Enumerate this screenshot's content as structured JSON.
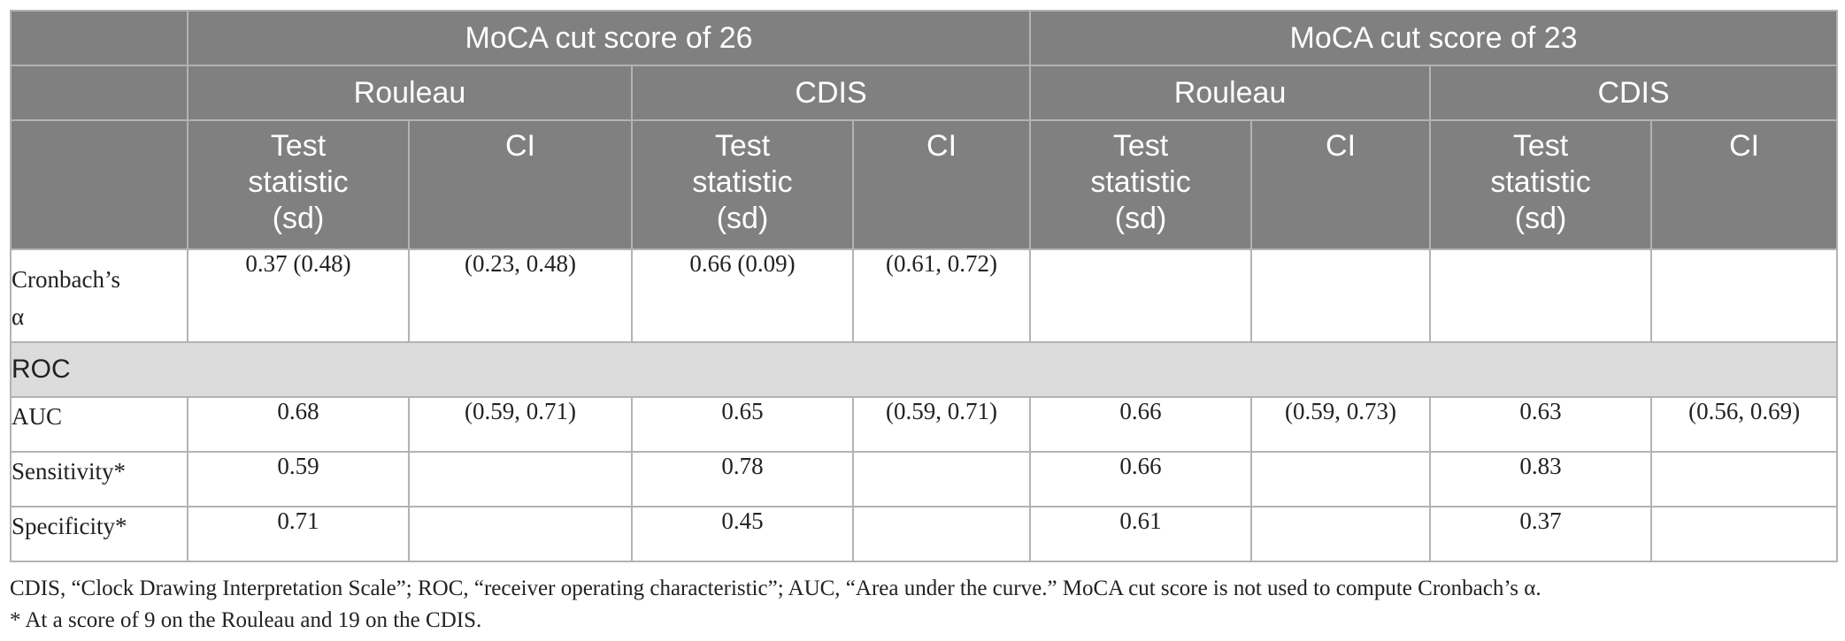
{
  "header": {
    "groups": [
      "MoCA cut score of 26",
      "MoCA cut score of 23"
    ],
    "scales": [
      "Rouleau",
      "CDIS",
      "Rouleau",
      "CDIS"
    ],
    "columns": [
      {
        "line1": "Test",
        "line2": "statistic",
        "line3": "(sd)"
      },
      {
        "line1": "CI"
      },
      {
        "line1": "Test",
        "line2": "statistic",
        "line3": "(sd)"
      },
      {
        "line1": "CI"
      },
      {
        "line1": "Test",
        "line2": "statistic",
        "line3": "(sd)"
      },
      {
        "line1": "CI"
      },
      {
        "line1": "Test",
        "line2": "statistic",
        "line3": "(sd)"
      },
      {
        "line1": "CI"
      }
    ]
  },
  "rows": {
    "cronbach": {
      "label_line1": "Cronbach’s",
      "label_line2": "α",
      "values": [
        "0.37 (0.48)",
        "(0.23, 0.48)",
        "0.66 (0.09)",
        "(0.61, 0.72)",
        "",
        "",
        "",
        ""
      ]
    },
    "section_label": "ROC",
    "auc": {
      "label": "AUC",
      "values": [
        "0.68",
        "(0.59, 0.71)",
        "0.65",
        "(0.59, 0.71)",
        "0.66",
        "(0.59, 0.73)",
        "0.63",
        "(0.56, 0.69)"
      ]
    },
    "sensitivity": {
      "label": "Sensitivity*",
      "values": [
        "0.59",
        "",
        "0.78",
        "",
        "0.66",
        "",
        "0.83",
        ""
      ]
    },
    "specificity": {
      "label": "Specificity*",
      "values": [
        "0.71",
        "",
        "0.45",
        "",
        "0.61",
        "",
        "0.37",
        ""
      ]
    }
  },
  "footnotes": {
    "line1": "CDIS, “Clock Drawing Interpretation Scale”; ROC, “receiver operating characteristic”; AUC, “Area under the curve.” MoCA cut score is not used to compute Cronbach’s α.",
    "line2": "* At a score of 9 on the Rouleau and 19 on the CDIS."
  }
}
